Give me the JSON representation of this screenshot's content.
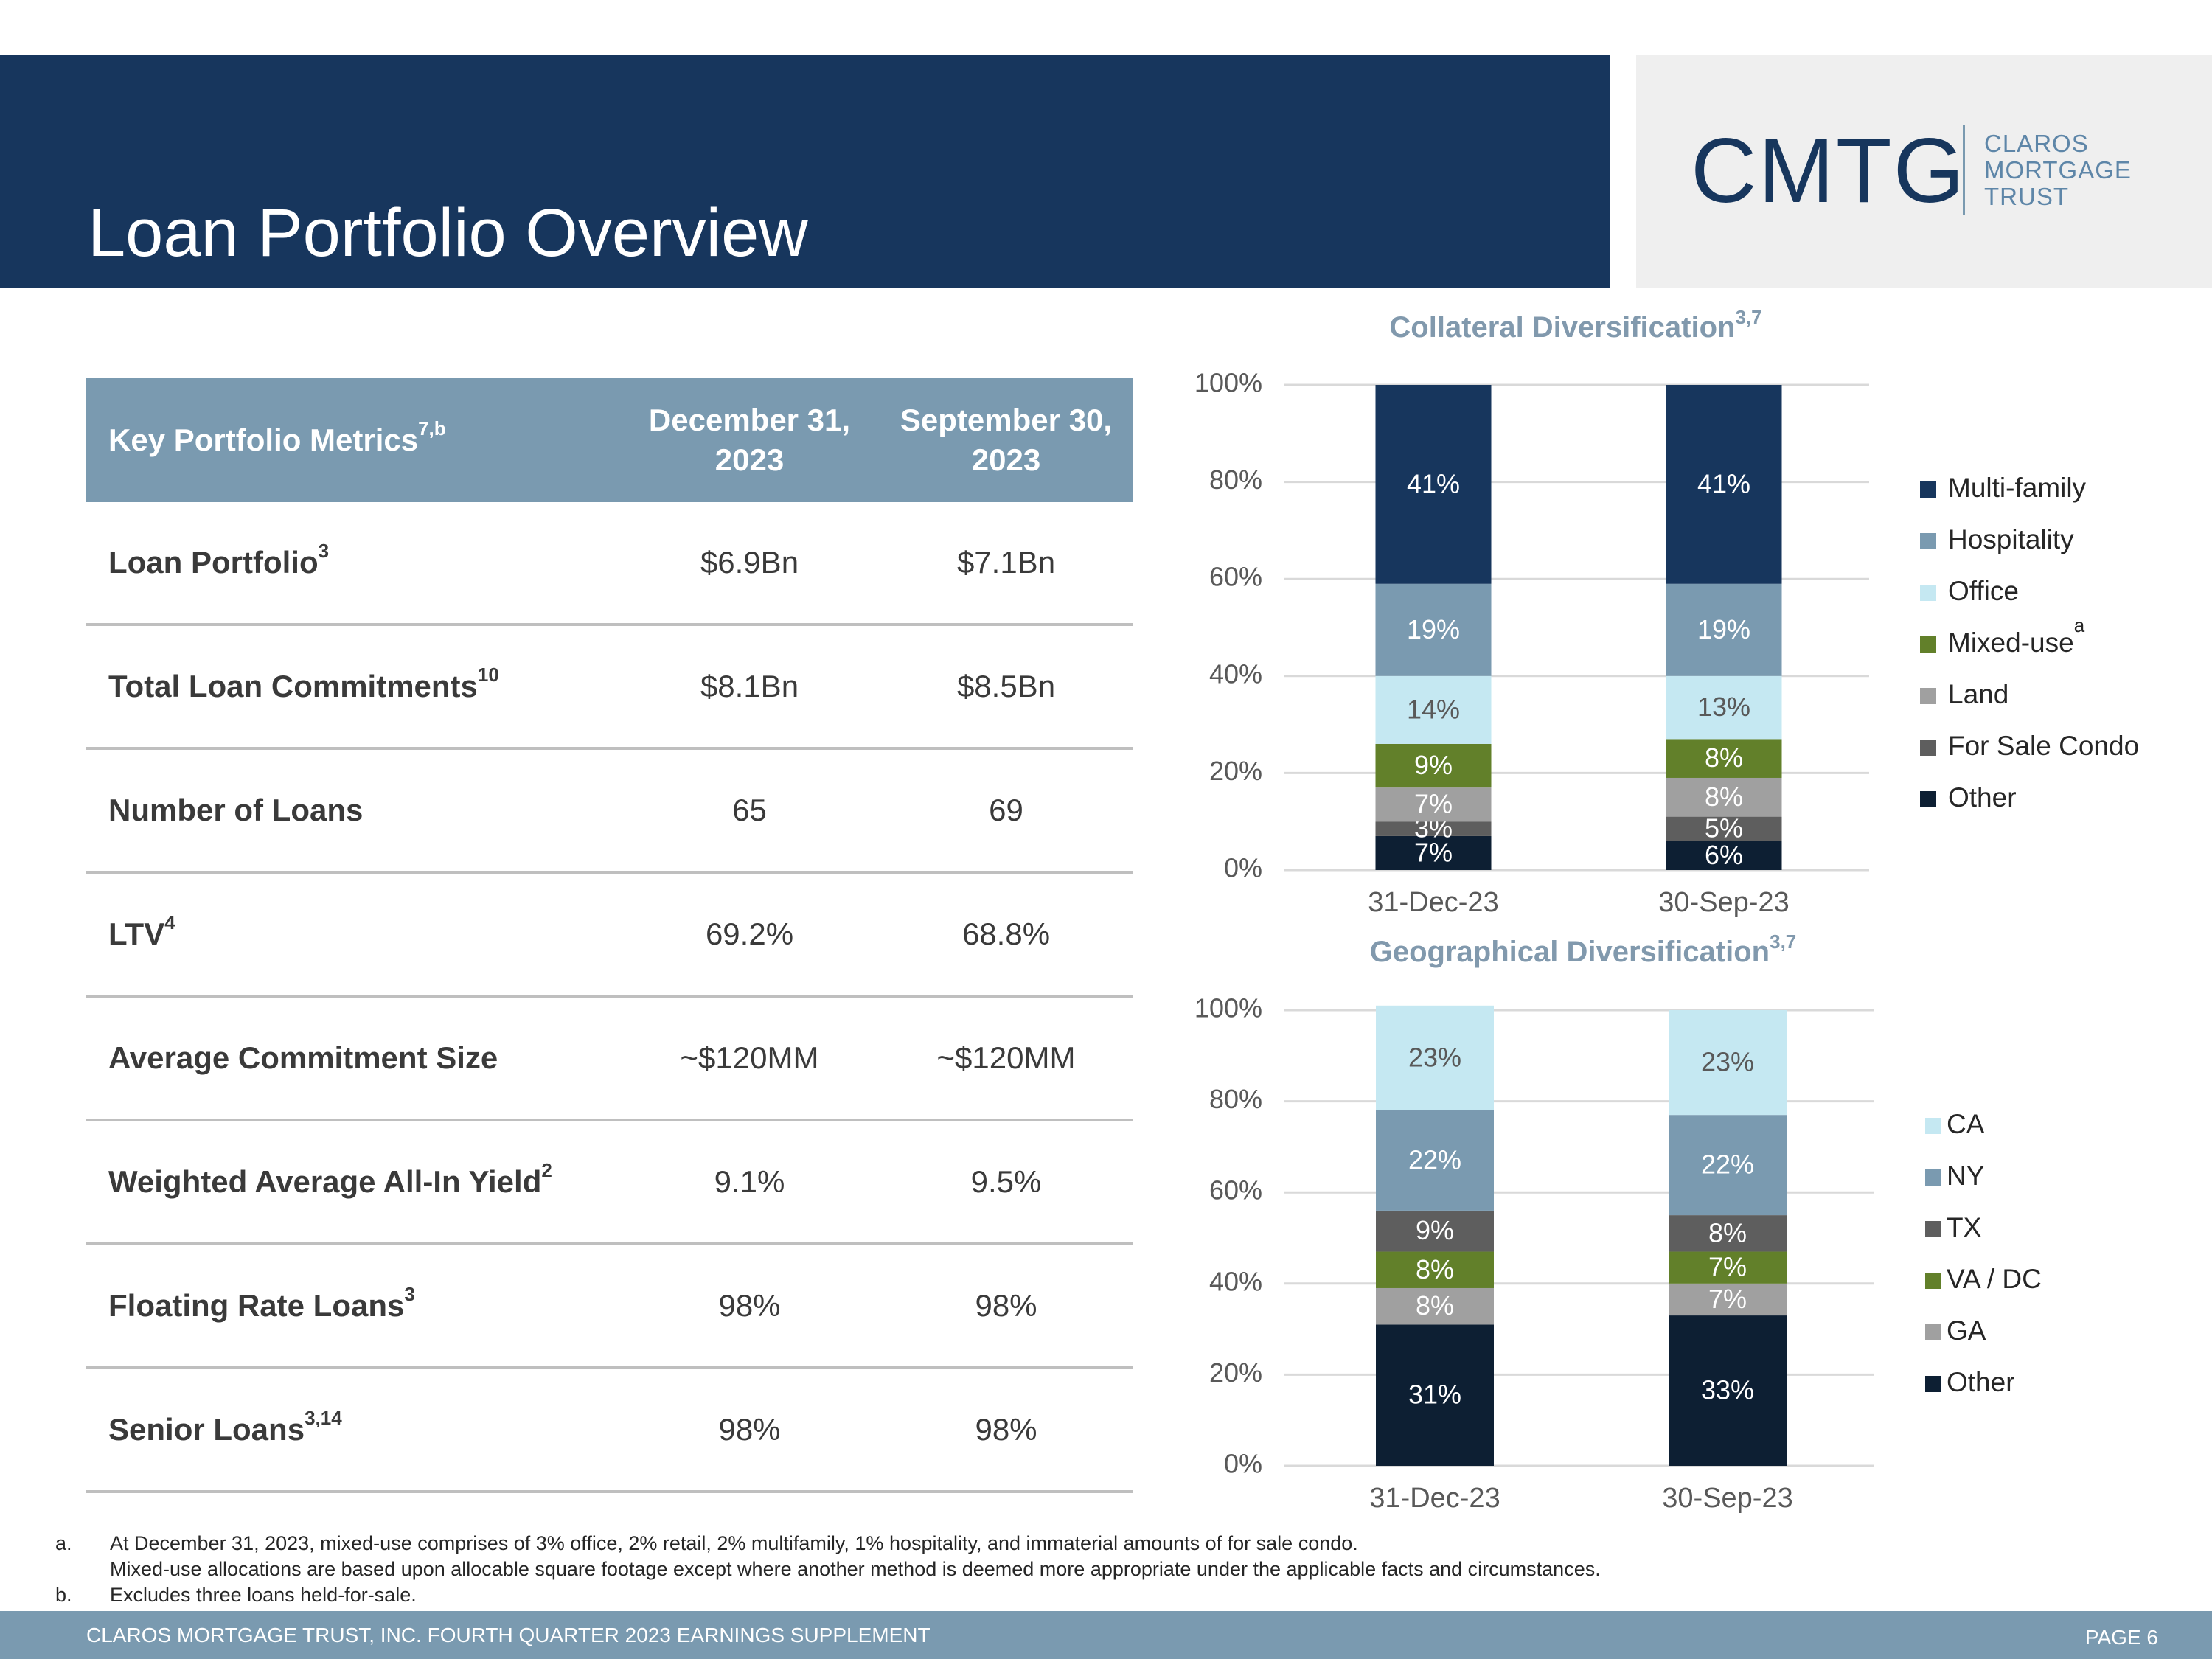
{
  "header": {
    "title": "Loan Portfolio Overview"
  },
  "logo": {
    "mark": "CMTG",
    "lines": [
      "CLAROS",
      "MORTGAGE",
      "TRUST"
    ]
  },
  "table": {
    "header": {
      "label": {
        "text": "Key Portfolio Metrics",
        "sup": "7,b"
      },
      "columns": [
        "December 31, 2023",
        "September 30, 2023"
      ]
    },
    "rows": [
      {
        "label": {
          "text": "Loan Portfolio",
          "sup": "3"
        },
        "values": [
          "$6.9Bn",
          "$7.1Bn"
        ]
      },
      {
        "label": {
          "text": "Total Loan Commitments",
          "sup": "10"
        },
        "values": [
          "$8.1Bn",
          "$8.5Bn"
        ]
      },
      {
        "label": {
          "text": "Number of Loans"
        },
        "values": [
          "65",
          "69"
        ]
      },
      {
        "label": {
          "text": "LTV",
          "sup": "4"
        },
        "values": [
          "69.2%",
          "68.8%"
        ]
      },
      {
        "label": {
          "text": "Average Commitment Size"
        },
        "values": [
          "~$120MM",
          "~$120MM"
        ]
      },
      {
        "label": {
          "text": "Weighted Average All-In Yield",
          "sup": "2"
        },
        "values": [
          "9.1%",
          "9.5%"
        ]
      },
      {
        "label": {
          "text": "Floating Rate Loans",
          "sup": "3"
        },
        "values": [
          "98%",
          "98%"
        ]
      },
      {
        "label": {
          "text": "Senior Loans",
          "sup": "3,14"
        },
        "values": [
          "98%",
          "98%"
        ]
      }
    ]
  },
  "chart_data": [
    {
      "type": "bar",
      "stacked": true,
      "title": "Collateral Diversification",
      "title_sup": "3,7",
      "categories": [
        "31-Dec-23",
        "30-Sep-23"
      ],
      "ylim": [
        0,
        100
      ],
      "yticks": [
        {
          "value": 0,
          "label": "0%"
        },
        {
          "value": 20,
          "label": "20%"
        },
        {
          "value": 40,
          "label": "40%"
        },
        {
          "value": 60,
          "label": "60%"
        },
        {
          "value": 80,
          "label": "80%"
        },
        {
          "value": 100,
          "label": "100%"
        }
      ],
      "grid": true,
      "legend": "right",
      "series": [
        {
          "name": "Multi-family",
          "color": "#17365d",
          "values": [
            41,
            41
          ],
          "value_labels": [
            "41%",
            "41%"
          ]
        },
        {
          "name": "Hospitality",
          "color": "#7a9ab0",
          "values": [
            19,
            19
          ],
          "value_labels": [
            "19%",
            "19%"
          ]
        },
        {
          "name": "Office",
          "color": "#c5e8f2",
          "values": [
            14,
            13
          ],
          "value_labels": [
            "14%",
            "13%"
          ]
        },
        {
          "name": "Mixed-use",
          "sup": "a",
          "color": "#62802a",
          "values": [
            9,
            8
          ],
          "value_labels": [
            "9%",
            "8%"
          ]
        },
        {
          "name": "Land",
          "color": "#a0a0a0",
          "values": [
            7,
            8
          ],
          "value_labels": [
            "7%",
            "8%"
          ]
        },
        {
          "name": "For Sale Condo",
          "color": "#5e5e5e",
          "values": [
            3,
            5
          ],
          "value_labels": [
            "3%",
            "5%"
          ]
        },
        {
          "name": "Other",
          "color": "#0d1f33",
          "values": [
            7,
            6
          ],
          "value_labels": [
            "7%",
            "6%"
          ]
        }
      ]
    },
    {
      "type": "bar",
      "stacked": true,
      "title": "Geographical Diversification",
      "title_sup": "3,7",
      "categories": [
        "31-Dec-23",
        "30-Sep-23"
      ],
      "ylim": [
        0,
        100
      ],
      "yticks": [
        {
          "value": 0,
          "label": "0%"
        },
        {
          "value": 20,
          "label": "20%"
        },
        {
          "value": 40,
          "label": "40%"
        },
        {
          "value": 60,
          "label": "60%"
        },
        {
          "value": 80,
          "label": "80%"
        },
        {
          "value": 100,
          "label": "100%"
        }
      ],
      "grid": true,
      "legend": "right",
      "series": [
        {
          "name": "CA",
          "color": "#c5e8f2",
          "values": [
            23,
            23
          ],
          "value_labels": [
            "23%",
            "23%"
          ]
        },
        {
          "name": "NY",
          "color": "#7a9ab0",
          "values": [
            22,
            22
          ],
          "value_labels": [
            "22%",
            "22%"
          ]
        },
        {
          "name": "TX",
          "color": "#5e5e5e",
          "values": [
            9,
            8
          ],
          "value_labels": [
            "9%",
            "8%"
          ]
        },
        {
          "name": "VA / DC",
          "color": "#62802a",
          "values": [
            8,
            7
          ],
          "value_labels": [
            "8%",
            "7%"
          ]
        },
        {
          "name": "GA",
          "color": "#a0a0a0",
          "values": [
            8,
            7
          ],
          "value_labels": [
            "8%",
            "7%"
          ]
        },
        {
          "name": "Other",
          "color": "#0d1f33",
          "values": [
            31,
            33
          ],
          "value_labels": [
            "31%",
            "33%"
          ]
        }
      ]
    }
  ],
  "footnotes": [
    {
      "mark": "a.",
      "lines": [
        "At December 31, 2023, mixed-use comprises of 3% office, 2% retail, 2% multifamily, 1% hospitality, and immaterial amounts of for sale condo.",
        "Mixed-use allocations are based upon allocable square footage except where another method is deemed more appropriate under the applicable facts and circumstances."
      ]
    },
    {
      "mark": "b.",
      "lines": [
        "Excludes three loans held-for-sale."
      ]
    }
  ],
  "footer": {
    "text": "CLAROS MORTGAGE TRUST, INC. FOURTH QUARTER 2023 EARNINGS SUPPLEMENT",
    "page": "PAGE 6"
  }
}
